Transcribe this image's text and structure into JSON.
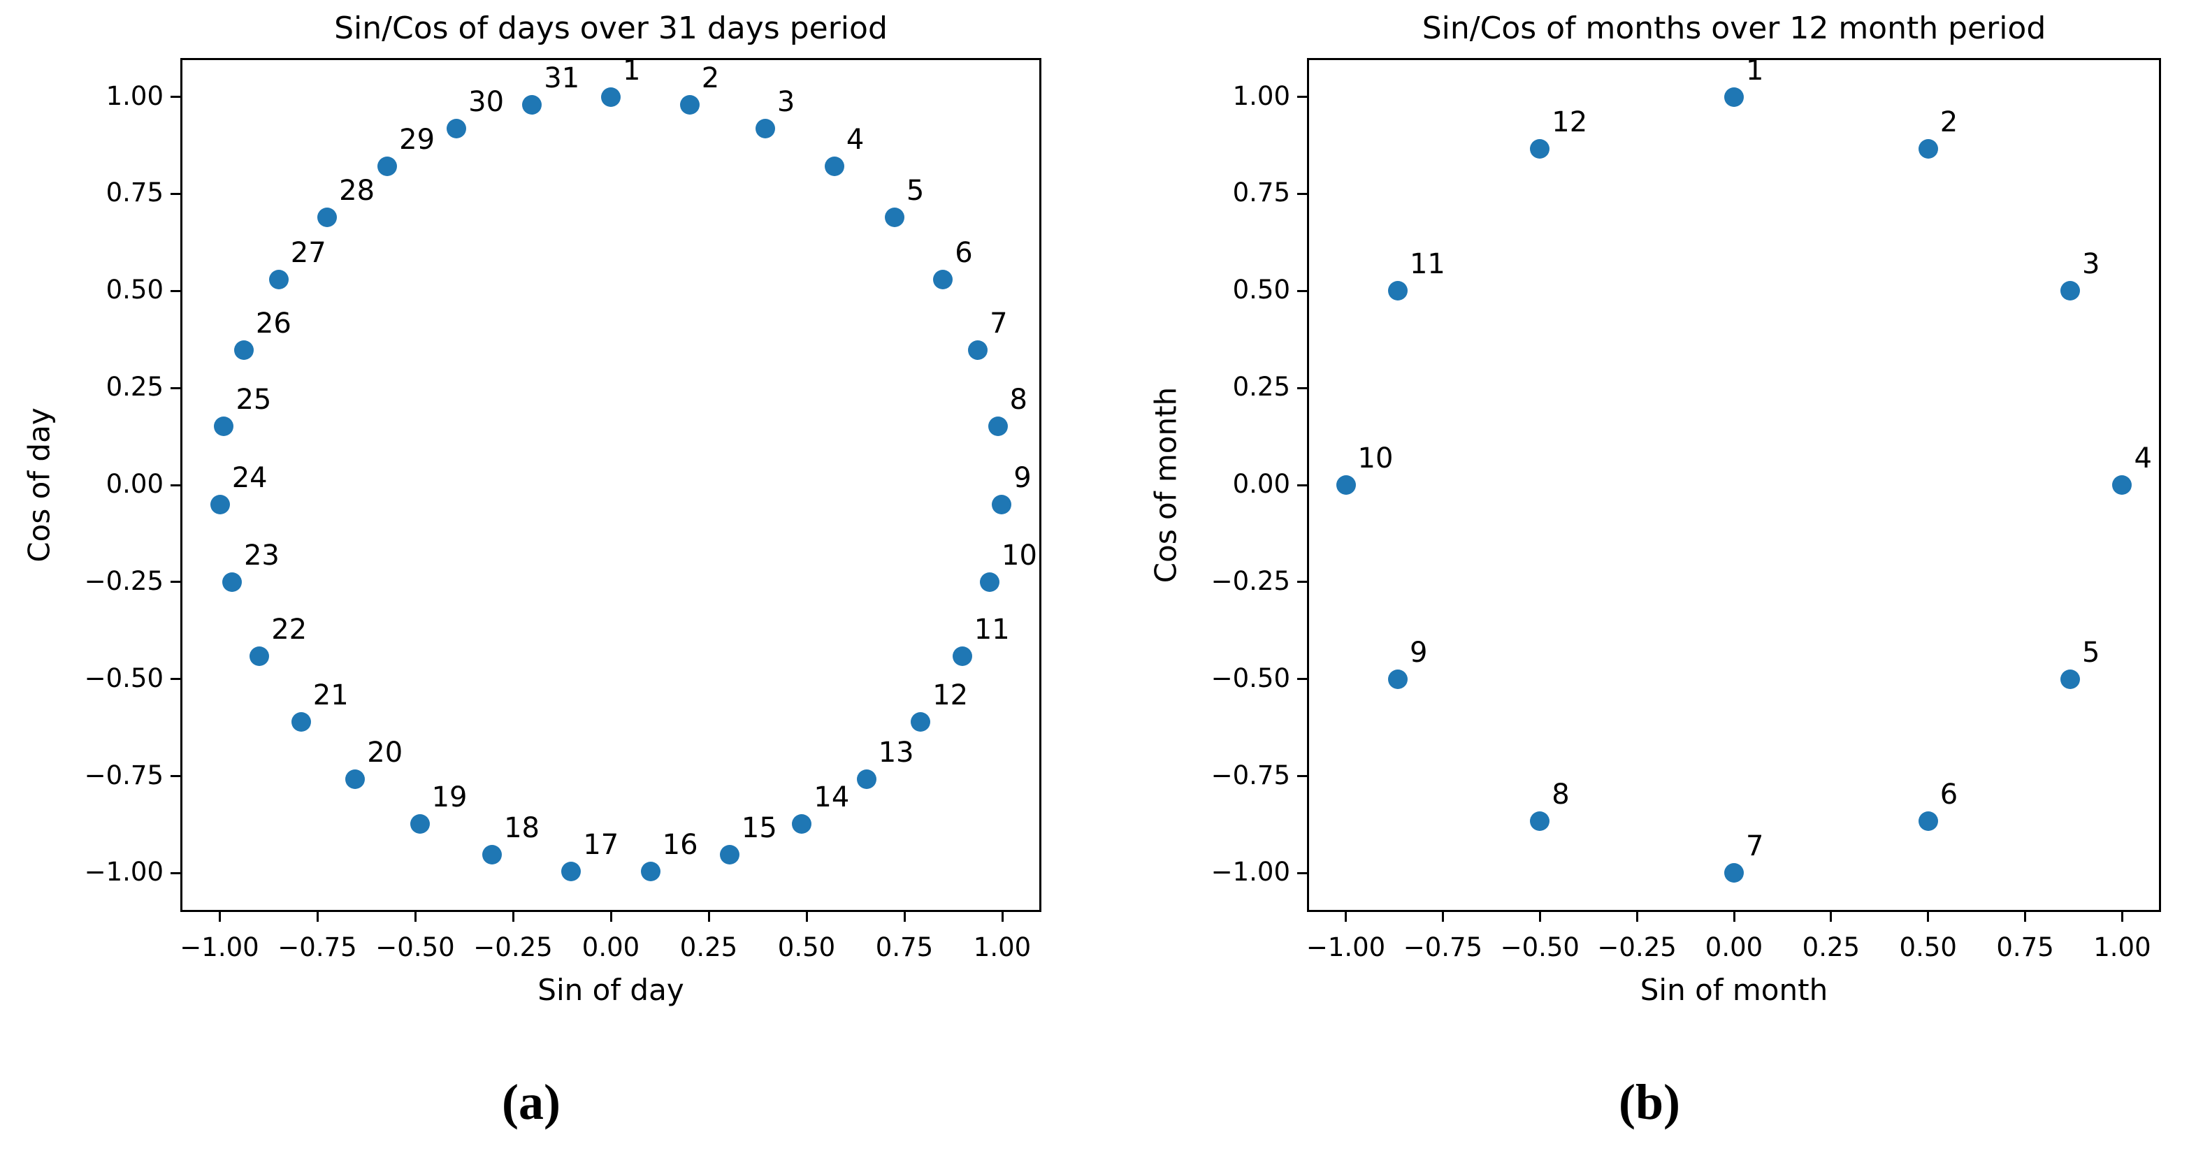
{
  "chart_data": [
    {
      "type": "scatter",
      "title": "Sin/Cos of days over 31 days period",
      "xlabel": "Sin of day",
      "ylabel": "Cos of day",
      "caption": "(a)",
      "legend": null,
      "grid": false,
      "xlim": [
        -1.1,
        1.1
      ],
      "ylim": [
        -1.1,
        1.1
      ],
      "tick_values": [
        -1.0,
        -0.75,
        -0.5,
        -0.25,
        0.0,
        0.25,
        0.5,
        0.75,
        1.0
      ],
      "tick_labels": [
        "−1.00",
        "−0.75",
        "−0.50",
        "−0.25",
        "0.00",
        "0.25",
        "0.50",
        "0.75",
        "1.00"
      ],
      "marker_color": "#1f77b4",
      "points": [
        {
          "label": "1",
          "x": 0.0,
          "y": 1.0
        },
        {
          "label": "2",
          "x": 0.2013,
          "y": 0.9795
        },
        {
          "label": "3",
          "x": 0.3944,
          "y": 0.9189
        },
        {
          "label": "4",
          "x": 0.5712,
          "y": 0.8208
        },
        {
          "label": "5",
          "x": 0.7247,
          "y": 0.6891
        },
        {
          "label": "6",
          "x": 0.8486,
          "y": 0.529
        },
        {
          "label": "7",
          "x": 0.9377,
          "y": 0.3473
        },
        {
          "label": "8",
          "x": 0.9884,
          "y": 0.1514
        },
        {
          "label": "9",
          "x": 0.9987,
          "y": -0.0506
        },
        {
          "label": "10",
          "x": 0.9679,
          "y": -0.2511
        },
        {
          "label": "11",
          "x": 0.8978,
          "y": -0.4404
        },
        {
          "label": "12",
          "x": 0.7915,
          "y": -0.6112
        },
        {
          "label": "13",
          "x": 0.6531,
          "y": -0.7573
        },
        {
          "label": "14",
          "x": 0.4882,
          "y": -0.8727
        },
        {
          "label": "15",
          "x": 0.3034,
          "y": -0.9529
        },
        {
          "label": "16",
          "x": 0.1012,
          "y": -0.9949
        },
        {
          "label": "17",
          "x": -0.1012,
          "y": -0.9949
        },
        {
          "label": "18",
          "x": -0.3034,
          "y": -0.9529
        },
        {
          "label": "19",
          "x": -0.4882,
          "y": -0.8727
        },
        {
          "label": "20",
          "x": -0.6531,
          "y": -0.7573
        },
        {
          "label": "21",
          "x": -0.7915,
          "y": -0.6112
        },
        {
          "label": "22",
          "x": -0.8978,
          "y": -0.4404
        },
        {
          "label": "23",
          "x": -0.9679,
          "y": -0.2511
        },
        {
          "label": "24",
          "x": -0.9987,
          "y": -0.0506
        },
        {
          "label": "25",
          "x": -0.9884,
          "y": 0.1514
        },
        {
          "label": "26",
          "x": -0.9377,
          "y": 0.3473
        },
        {
          "label": "27",
          "x": -0.8486,
          "y": 0.529
        },
        {
          "label": "28",
          "x": -0.7247,
          "y": 0.6891
        },
        {
          "label": "29",
          "x": -0.5712,
          "y": 0.8208
        },
        {
          "label": "30",
          "x": -0.3944,
          "y": 0.9189
        },
        {
          "label": "31",
          "x": -0.2013,
          "y": 0.9795
        }
      ]
    },
    {
      "type": "scatter",
      "title": "Sin/Cos of months over 12 month period",
      "xlabel": "Sin of month",
      "ylabel": "Cos of month",
      "caption": "(b)",
      "legend": null,
      "grid": false,
      "xlim": [
        -1.1,
        1.1
      ],
      "ylim": [
        -1.1,
        1.1
      ],
      "tick_values": [
        -1.0,
        -0.75,
        -0.5,
        -0.25,
        0.0,
        0.25,
        0.5,
        0.75,
        1.0
      ],
      "tick_labels": [
        "−1.00",
        "−0.75",
        "−0.50",
        "−0.25",
        "0.00",
        "0.25",
        "0.50",
        "0.75",
        "1.00"
      ],
      "marker_color": "#1f77b4",
      "points": [
        {
          "label": "1",
          "x": 0.0,
          "y": 1.0
        },
        {
          "label": "2",
          "x": 0.5,
          "y": 0.866
        },
        {
          "label": "3",
          "x": 0.866,
          "y": 0.5
        },
        {
          "label": "4",
          "x": 1.0,
          "y": 0.0
        },
        {
          "label": "5",
          "x": 0.866,
          "y": -0.5
        },
        {
          "label": "6",
          "x": 0.5,
          "y": -0.866
        },
        {
          "label": "7",
          "x": 0.0,
          "y": -1.0
        },
        {
          "label": "8",
          "x": -0.5,
          "y": -0.866
        },
        {
          "label": "9",
          "x": -0.866,
          "y": -0.5
        },
        {
          "label": "10",
          "x": -1.0,
          "y": 0.0
        },
        {
          "label": "11",
          "x": -0.866,
          "y": 0.5
        },
        {
          "label": "12",
          "x": -0.5,
          "y": 0.866
        }
      ]
    }
  ]
}
